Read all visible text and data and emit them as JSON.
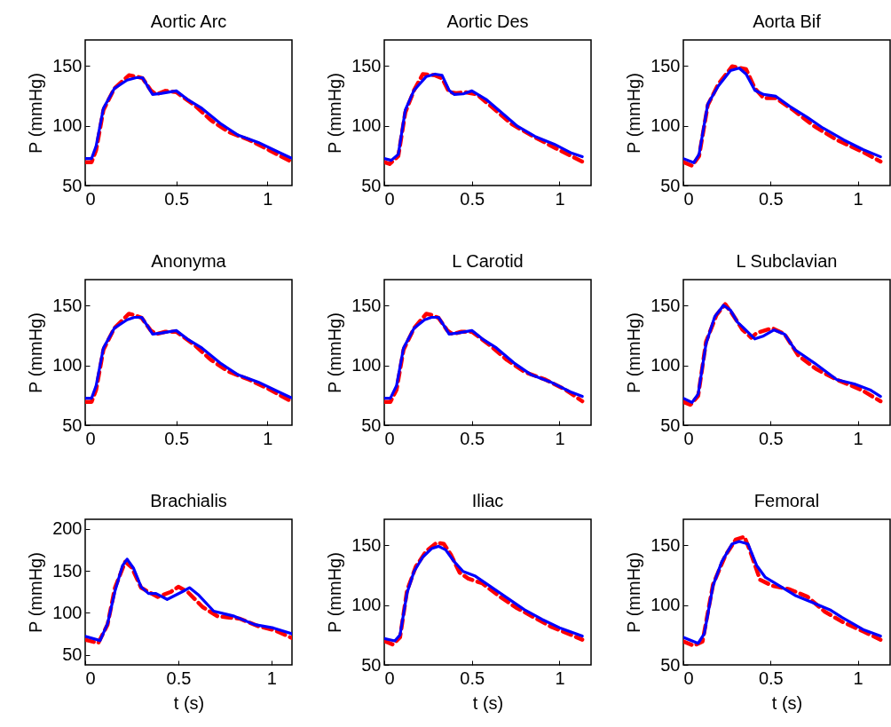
{
  "chart_data": [
    {
      "type": "line",
      "title": "Aortic Arc",
      "ylabel": "P (mmHg)",
      "xlim": [
        0,
        1.135
      ],
      "xticks": [
        0,
        0.5,
        1
      ],
      "ylim": [
        50,
        171.5
      ],
      "yticks": [
        50,
        100,
        150
      ],
      "series": [
        {
          "color": "#ff0000",
          "line_style": "dashed",
          "x": [
            0,
            0.035,
            0.06,
            0.1,
            0.16,
            0.24,
            0.28,
            0.315,
            0.36,
            0.39,
            0.44,
            0.5,
            0.6,
            0.69,
            0.79,
            0.9,
            1.01,
            1.13
          ],
          "values": [
            69.5,
            69.5,
            79.5,
            113,
            131,
            142,
            141,
            139.5,
            129.5,
            126,
            129,
            128,
            117,
            104.5,
            94.5,
            88,
            79.5,
            70
          ]
        },
        {
          "color": "#0000ff",
          "line_style": "solid",
          "x": [
            0,
            0.035,
            0.06,
            0.1,
            0.16,
            0.23,
            0.28,
            0.315,
            0.35,
            0.37,
            0.42,
            0.5,
            0.56,
            0.64,
            0.74,
            0.84,
            0.95,
            1.06,
            1.13
          ],
          "values": [
            72.5,
            72.5,
            83,
            114.5,
            131,
            138,
            140,
            140,
            131,
            126,
            127,
            129,
            122,
            114.5,
            102,
            92,
            86,
            78,
            73
          ]
        }
      ]
    },
    {
      "type": "line",
      "title": "Aortic Des",
      "ylabel": "P (mmHg)",
      "xlim": [
        0,
        1.18
      ],
      "xticks": [
        0,
        0.5,
        1
      ],
      "ylim": [
        50,
        171.5
      ],
      "yticks": [
        50,
        100,
        150
      ],
      "series": [
        {
          "color": "#ff0000",
          "line_style": "dashed",
          "x": [
            0,
            0.03,
            0.08,
            0.12,
            0.17,
            0.22,
            0.29,
            0.33,
            0.37,
            0.41,
            0.46,
            0.53,
            0.61,
            0.73,
            0.85,
            0.98,
            1.13
          ],
          "values": [
            69.5,
            68,
            74.5,
            111,
            129.5,
            143,
            142,
            139.5,
            128,
            127,
            128,
            126,
            116,
            101,
            91,
            81,
            70
          ]
        },
        {
          "color": "#0000ff",
          "line_style": "solid",
          "x": [
            0,
            0.04,
            0.08,
            0.12,
            0.17,
            0.24,
            0.29,
            0.33,
            0.37,
            0.4,
            0.45,
            0.5,
            0.58,
            0.66,
            0.76,
            0.86,
            0.97,
            1.07,
            1.13
          ],
          "values": [
            72.5,
            71,
            76,
            113,
            129.5,
            141,
            143,
            142,
            129.5,
            126,
            126.5,
            129,
            122,
            112,
            99.5,
            91,
            84.5,
            77,
            74
          ]
        }
      ]
    },
    {
      "type": "line",
      "title": "Aorta Bif",
      "ylabel": "P (mmHg)",
      "xlim": [
        0,
        1.185
      ],
      "xticks": [
        0,
        0.5,
        1
      ],
      "ylim": [
        50,
        171.5
      ],
      "yticks": [
        50,
        100,
        150
      ],
      "series": [
        {
          "color": "#ff0000",
          "line_style": "dashed",
          "x": [
            0,
            0.05,
            0.09,
            0.14,
            0.2,
            0.28,
            0.36,
            0.41,
            0.46,
            0.53,
            0.63,
            0.75,
            0.88,
            1.03,
            1.13
          ],
          "values": [
            69.5,
            66.5,
            74.5,
            117,
            134.5,
            149.5,
            147,
            131,
            123,
            123,
            113,
            99.5,
            88,
            78,
            70
          ]
        },
        {
          "color": "#0000ff",
          "line_style": "solid",
          "x": [
            0,
            0.06,
            0.09,
            0.14,
            0.2,
            0.27,
            0.32,
            0.36,
            0.41,
            0.46,
            0.53,
            0.61,
            0.71,
            0.8,
            0.92,
            1.03,
            1.13
          ],
          "values": [
            72.5,
            69,
            76,
            118,
            133,
            146,
            148,
            143,
            129.5,
            126,
            124.5,
            116,
            107,
            98,
            88,
            80,
            74
          ]
        }
      ]
    },
    {
      "type": "line",
      "title": "Anonyma",
      "ylabel": "P (mmHg)",
      "xlim": [
        0,
        1.135
      ],
      "xticks": [
        0,
        0.5,
        1
      ],
      "ylim": [
        50,
        171.5
      ],
      "yticks": [
        50,
        100,
        150
      ],
      "series": [
        {
          "color": "#ff0000",
          "line_style": "dashed",
          "x": [
            0,
            0.035,
            0.06,
            0.1,
            0.16,
            0.24,
            0.27,
            0.31,
            0.36,
            0.39,
            0.44,
            0.5,
            0.6,
            0.69,
            0.79,
            0.9,
            1.01,
            1.13
          ],
          "values": [
            69.5,
            69.5,
            79.5,
            113,
            131,
            143,
            142,
            139.5,
            129,
            126,
            128,
            128,
            117,
            104.5,
            94.5,
            88,
            80,
            70
          ]
        },
        {
          "color": "#0000ff",
          "line_style": "solid",
          "x": [
            0,
            0.035,
            0.06,
            0.1,
            0.16,
            0.23,
            0.27,
            0.31,
            0.35,
            0.37,
            0.42,
            0.5,
            0.56,
            0.64,
            0.74,
            0.84,
            0.95,
            1.06,
            1.13
          ],
          "values": [
            72.5,
            72.5,
            83,
            114.5,
            131,
            138,
            140,
            140,
            131,
            126,
            127,
            129,
            122,
            114.5,
            102,
            92,
            86,
            78,
            73
          ]
        }
      ]
    },
    {
      "type": "line",
      "title": "L Carotid",
      "ylabel": "P (mmHg)",
      "xlim": [
        0,
        1.18
      ],
      "xticks": [
        0,
        0.5,
        1
      ],
      "ylim": [
        50,
        171.5
      ],
      "yticks": [
        50,
        100,
        150
      ],
      "series": [
        {
          "color": "#ff0000",
          "line_style": "dashed",
          "x": [
            0,
            0.035,
            0.07,
            0.11,
            0.17,
            0.24,
            0.27,
            0.31,
            0.36,
            0.39,
            0.44,
            0.5,
            0.6,
            0.7,
            0.8,
            0.92,
            1.03,
            1.13
          ],
          "values": [
            69.5,
            69.5,
            79.5,
            113,
            131,
            143,
            142,
            139.5,
            129,
            126,
            128,
            128,
            117,
            104.5,
            94.5,
            88,
            80,
            70
          ]
        },
        {
          "color": "#0000ff",
          "line_style": "solid",
          "x": [
            0,
            0.035,
            0.07,
            0.11,
            0.17,
            0.23,
            0.27,
            0.31,
            0.35,
            0.37,
            0.42,
            0.5,
            0.56,
            0.64,
            0.74,
            0.84,
            0.95,
            1.06,
            1.13
          ],
          "values": [
            72.5,
            72.5,
            83,
            114.5,
            131,
            138,
            140,
            140,
            131,
            126,
            127,
            129,
            122,
            114.5,
            102,
            92,
            86,
            78,
            74
          ]
        }
      ]
    },
    {
      "type": "line",
      "title": "L Subclavian",
      "ylabel": "P (mmHg)",
      "xlim": [
        0,
        1.185
      ],
      "xticks": [
        0,
        0.5,
        1
      ],
      "ylim": [
        50,
        171.5
      ],
      "yticks": [
        50,
        100,
        150
      ],
      "series": [
        {
          "color": "#ff0000",
          "line_style": "dashed",
          "x": [
            0,
            0.04,
            0.085,
            0.13,
            0.19,
            0.24,
            0.28,
            0.34,
            0.39,
            0.42,
            0.51,
            0.58,
            0.66,
            0.76,
            0.88,
            1.02,
            1.13
          ],
          "values": [
            69.5,
            67,
            74.5,
            119.5,
            142,
            151,
            143,
            129.5,
            123,
            127,
            131,
            126,
            108,
            97,
            88,
            79.5,
            70
          ]
        },
        {
          "color": "#0000ff",
          "line_style": "solid",
          "x": [
            0,
            0.05,
            0.085,
            0.13,
            0.18,
            0.23,
            0.27,
            0.31,
            0.34,
            0.41,
            0.46,
            0.52,
            0.58,
            0.64,
            0.75,
            0.88,
            0.98,
            1.07,
            1.13
          ],
          "values": [
            72.5,
            69,
            76,
            118,
            140.5,
            150,
            146,
            136,
            132,
            122,
            124.5,
            129.5,
            126,
            113,
            102,
            88,
            84.5,
            79.5,
            74
          ]
        }
      ]
    },
    {
      "type": "line",
      "title": "Brachialis",
      "xlabel": "t (s)",
      "ylabel": "P (mmHg)",
      "xlim": [
        0,
        1.11
      ],
      "xticks": [
        0,
        0.5,
        1
      ],
      "ylim": [
        38,
        211.5
      ],
      "yticks": [
        50,
        100,
        150,
        200
      ],
      "series": [
        {
          "color": "#ff0000",
          "line_style": "dashed",
          "x": [
            0,
            0.07,
            0.12,
            0.16,
            0.215,
            0.25,
            0.3,
            0.34,
            0.39,
            0.46,
            0.5,
            0.55,
            0.63,
            0.71,
            0.83,
            0.93,
            1.02,
            1.11
          ],
          "values": [
            68,
            64,
            86,
            130,
            161,
            154,
            130,
            125,
            119,
            125,
            131,
            125,
            107,
            96,
            93,
            84,
            79,
            70
          ]
        },
        {
          "color": "#0000ff",
          "line_style": "solid",
          "x": [
            0,
            0.08,
            0.12,
            0.16,
            0.2,
            0.225,
            0.26,
            0.3,
            0.34,
            0.38,
            0.44,
            0.52,
            0.56,
            0.61,
            0.69,
            0.8,
            0.91,
            1.01,
            1.11
          ],
          "values": [
            72,
            67,
            87,
            126,
            156,
            164,
            153,
            131,
            123,
            123,
            116,
            125,
            130,
            121,
            102,
            96,
            86,
            82,
            75
          ]
        }
      ]
    },
    {
      "type": "line",
      "title": "Iliac",
      "xlabel": "t (s)",
      "ylabel": "P (mmHg)",
      "xlim": [
        0,
        1.18
      ],
      "xticks": [
        0,
        0.5,
        1
      ],
      "ylim": [
        50,
        171.5
      ],
      "yticks": [
        50,
        100,
        150
      ],
      "series": [
        {
          "color": "#ff0000",
          "line_style": "dashed",
          "x": [
            0,
            0.05,
            0.09,
            0.13,
            0.18,
            0.24,
            0.3,
            0.34,
            0.38,
            0.43,
            0.48,
            0.56,
            0.65,
            0.75,
            0.85,
            0.95,
            1.05,
            1.13
          ],
          "values": [
            70,
            67,
            73,
            112,
            132,
            145,
            152,
            151,
            142,
            127,
            122,
            118,
            108,
            98,
            90,
            82,
            76,
            71
          ]
        },
        {
          "color": "#0000ff",
          "line_style": "solid",
          "x": [
            0,
            0.06,
            0.09,
            0.13,
            0.17,
            0.22,
            0.27,
            0.31,
            0.35,
            0.4,
            0.45,
            0.52,
            0.6,
            0.7,
            0.8,
            0.9,
            1.0,
            1.13
          ],
          "values": [
            72,
            70,
            75,
            110,
            128,
            140,
            147,
            149,
            146,
            136,
            128,
            124,
            116,
            106,
            96,
            88,
            81,
            74
          ]
        }
      ]
    },
    {
      "type": "line",
      "title": "Femoral",
      "xlabel": "t (s)",
      "ylabel": "P (mmHg)",
      "xlim": [
        0,
        1.185
      ],
      "xticks": [
        0,
        0.5,
        1
      ],
      "ylim": [
        50,
        171.5
      ],
      "yticks": [
        50,
        100,
        150
      ],
      "series": [
        {
          "color": "#ff0000",
          "line_style": "dashed",
          "x": [
            0,
            0.06,
            0.11,
            0.17,
            0.24,
            0.3,
            0.35,
            0.38,
            0.44,
            0.51,
            0.61,
            0.71,
            0.81,
            0.91,
            1.03,
            1.13
          ],
          "values": [
            69.5,
            66,
            69.5,
            117,
            141,
            154.5,
            157,
            146,
            121,
            116,
            113,
            107,
            94.5,
            86,
            78,
            71
          ]
        },
        {
          "color": "#0000ff",
          "line_style": "solid",
          "x": [
            0,
            0.085,
            0.12,
            0.17,
            0.22,
            0.28,
            0.32,
            0.37,
            0.42,
            0.47,
            0.54,
            0.64,
            0.74,
            0.84,
            0.91,
            1.03,
            1.13
          ],
          "values": [
            73,
            68,
            76,
            116,
            136,
            151,
            153,
            151,
            133,
            123,
            117,
            108,
            102,
            96,
            89.5,
            79.5,
            74
          ]
        }
      ]
    }
  ]
}
